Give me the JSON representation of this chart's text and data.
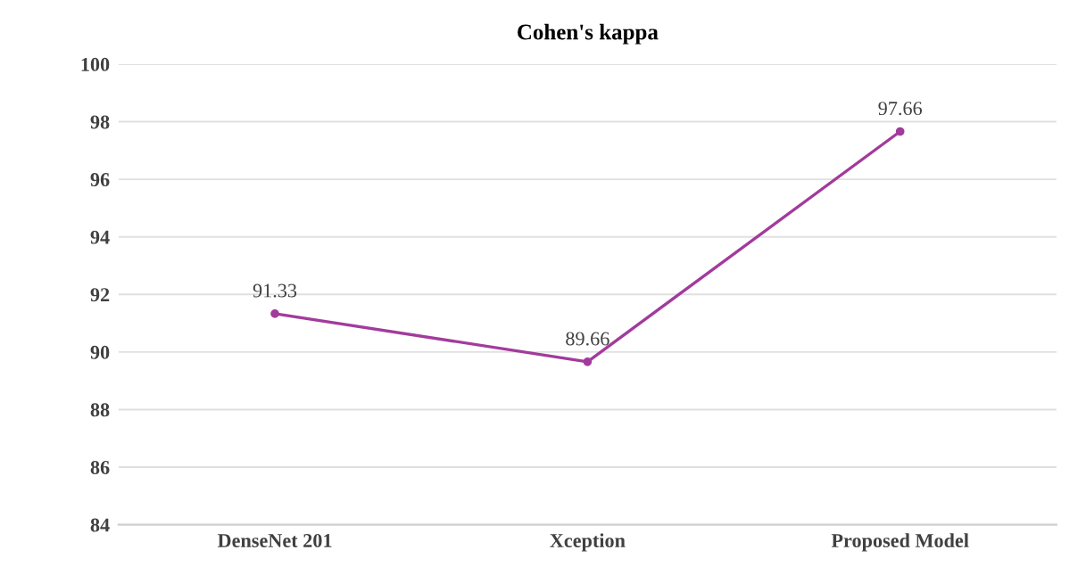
{
  "chart_data": {
    "type": "line",
    "title": "Cohen's kappa",
    "categories": [
      "DenseNet 201",
      "Xception",
      "Proposed Model"
    ],
    "series": [
      {
        "color": "#a23b9c",
        "values": [
          91.33,
          89.66,
          97.66
        ]
      }
    ],
    "ylim": [
      84,
      100
    ],
    "yticks": [
      84,
      86,
      88,
      90,
      92,
      94,
      96,
      98,
      100
    ],
    "grid": "y",
    "marker": "circle",
    "line_style": "solid",
    "data_labels": true,
    "legend": false
  }
}
